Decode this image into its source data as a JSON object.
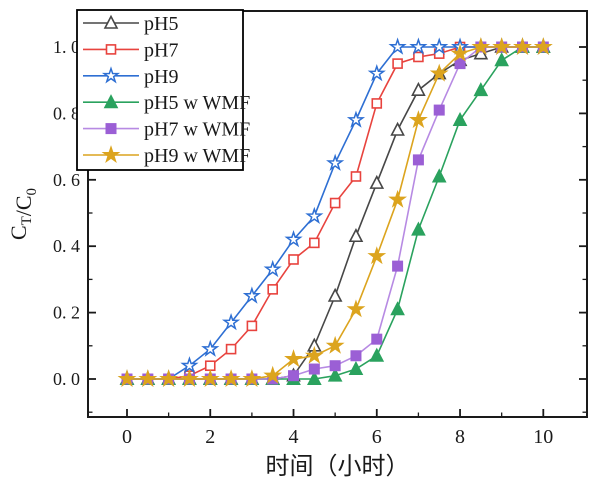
{
  "chart_data": {
    "type": "line",
    "title": "",
    "xlabel": "时间（小时）",
    "ylabel": "C_T/C_0",
    "ylabel_parts": [
      {
        "t": "C"
      },
      {
        "t": "T",
        "sub": true
      },
      {
        "t": "/C"
      },
      {
        "t": "0",
        "sub": true
      }
    ],
    "xlim": [
      -0.95,
      11.05
    ],
    "ylim": [
      -0.11,
      1.1
    ],
    "grid": false,
    "legend_position": "upper-left",
    "x_ticks": [
      0,
      2,
      4,
      6,
      8,
      10
    ],
    "x_tick_labels": [
      "0",
      "2",
      "4",
      "6",
      "8",
      "10"
    ],
    "x_minor_ticks": [
      1,
      3,
      5,
      7,
      9
    ],
    "y_ticks": [
      0.0,
      0.2,
      0.4,
      0.6,
      0.8,
      1.0
    ],
    "y_tick_labels": [
      "0. 0",
      "0. 2",
      "0. 4",
      "0. 6",
      "0. 8",
      "1. 0"
    ],
    "y_minor_ticks": [
      -0.1,
      0.1,
      0.3,
      0.5,
      0.7,
      0.9
    ],
    "x": [
      0,
      0.5,
      1,
      1.5,
      2,
      2.5,
      3,
      3.5,
      4,
      4.5,
      5,
      5.5,
      6,
      6.5,
      7,
      7.5,
      8,
      8.5,
      9,
      9.5,
      10
    ],
    "series": [
      {
        "name": "pH5",
        "marker": "triangle-open",
        "line_color": "#474747",
        "marker_color": "#474747",
        "values": [
          0,
          0,
          0,
          0,
          0,
          0,
          0,
          0,
          0.01,
          0.1,
          0.25,
          0.43,
          0.59,
          0.75,
          0.87,
          0.92,
          0.96,
          0.98,
          1,
          1,
          1
        ]
      },
      {
        "name": "pH7",
        "marker": "square-open",
        "line_color": "#e8433e",
        "marker_color": "#e8433e",
        "values": [
          0,
          0,
          0,
          0.01,
          0.04,
          0.09,
          0.16,
          0.27,
          0.36,
          0.41,
          0.53,
          0.61,
          0.83,
          0.95,
          0.97,
          0.98,
          1,
          1,
          1,
          1,
          1
        ]
      },
      {
        "name": "pH9",
        "marker": "star-open",
        "line_color": "#2e6fd3",
        "marker_color": "#2e6fd3",
        "values": [
          0,
          0,
          0,
          0.04,
          0.09,
          0.17,
          0.25,
          0.33,
          0.42,
          0.49,
          0.65,
          0.78,
          0.92,
          1,
          1,
          1,
          1,
          1,
          1,
          1,
          1
        ]
      },
      {
        "name": "pH5 w WMF",
        "marker": "triangle-filled",
        "line_color": "#2aa25e",
        "marker_color": "#2aa25e",
        "values": [
          0,
          0,
          0,
          0,
          0,
          0,
          0,
          0,
          0,
          0,
          0.01,
          0.03,
          0.07,
          0.21,
          0.45,
          0.61,
          0.78,
          0.87,
          0.96,
          1,
          1
        ]
      },
      {
        "name": "pH7 w WMF",
        "marker": "square-filled",
        "line_color": "#b78ae3",
        "marker_color": "#9b5fd5",
        "values": [
          0,
          0,
          0,
          0,
          0,
          0,
          0,
          0,
          0.01,
          0.03,
          0.04,
          0.07,
          0.12,
          0.34,
          0.66,
          0.81,
          0.95,
          1,
          1,
          1,
          1
        ]
      },
      {
        "name": "pH9 w WMF",
        "marker": "star-filled",
        "line_color": "#dca41e",
        "marker_color": "#dca41e",
        "values": [
          0,
          0,
          0,
          0,
          0,
          0,
          0,
          0.01,
          0.06,
          0.07,
          0.1,
          0.21,
          0.37,
          0.54,
          0.78,
          0.92,
          0.98,
          1,
          1,
          1,
          1
        ]
      }
    ]
  }
}
